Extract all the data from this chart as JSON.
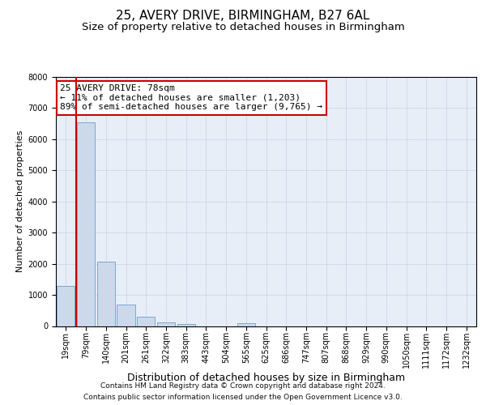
{
  "title1": "25, AVERY DRIVE, BIRMINGHAM, B27 6AL",
  "title2": "Size of property relative to detached houses in Birmingham",
  "xlabel": "Distribution of detached houses by size in Birmingham",
  "ylabel": "Number of detached properties",
  "categories": [
    "19sqm",
    "79sqm",
    "140sqm",
    "201sqm",
    "261sqm",
    "322sqm",
    "383sqm",
    "443sqm",
    "504sqm",
    "565sqm",
    "625sqm",
    "686sqm",
    "747sqm",
    "807sqm",
    "868sqm",
    "929sqm",
    "990sqm",
    "1050sqm",
    "1111sqm",
    "1172sqm",
    "1232sqm"
  ],
  "values": [
    1300,
    6550,
    2080,
    680,
    290,
    110,
    65,
    0,
    0,
    80,
    0,
    0,
    0,
    0,
    0,
    0,
    0,
    0,
    0,
    0,
    0
  ],
  "bar_color": "#ccd9ea",
  "bar_edge_color": "#6b9ec8",
  "ylim": [
    0,
    8000
  ],
  "yticks": [
    0,
    1000,
    2000,
    3000,
    4000,
    5000,
    6000,
    7000,
    8000
  ],
  "annotation_line1": "25 AVERY DRIVE: 78sqm",
  "annotation_line2": "← 11% of detached houses are smaller (1,203)",
  "annotation_line3": "89% of semi-detached houses are larger (9,765) →",
  "grid_color": "#c8d4e4",
  "bg_color": "#e8eef8",
  "red_line_color": "#cc0000",
  "title1_fontsize": 11,
  "title2_fontsize": 9.5,
  "xlabel_fontsize": 9,
  "ylabel_fontsize": 8,
  "tick_fontsize": 7,
  "annot_fontsize": 8,
  "footer1": "Contains HM Land Registry data © Crown copyright and database right 2024.",
  "footer2": "Contains public sector information licensed under the Open Government Licence v3.0.",
  "footer_fontsize": 6.5
}
